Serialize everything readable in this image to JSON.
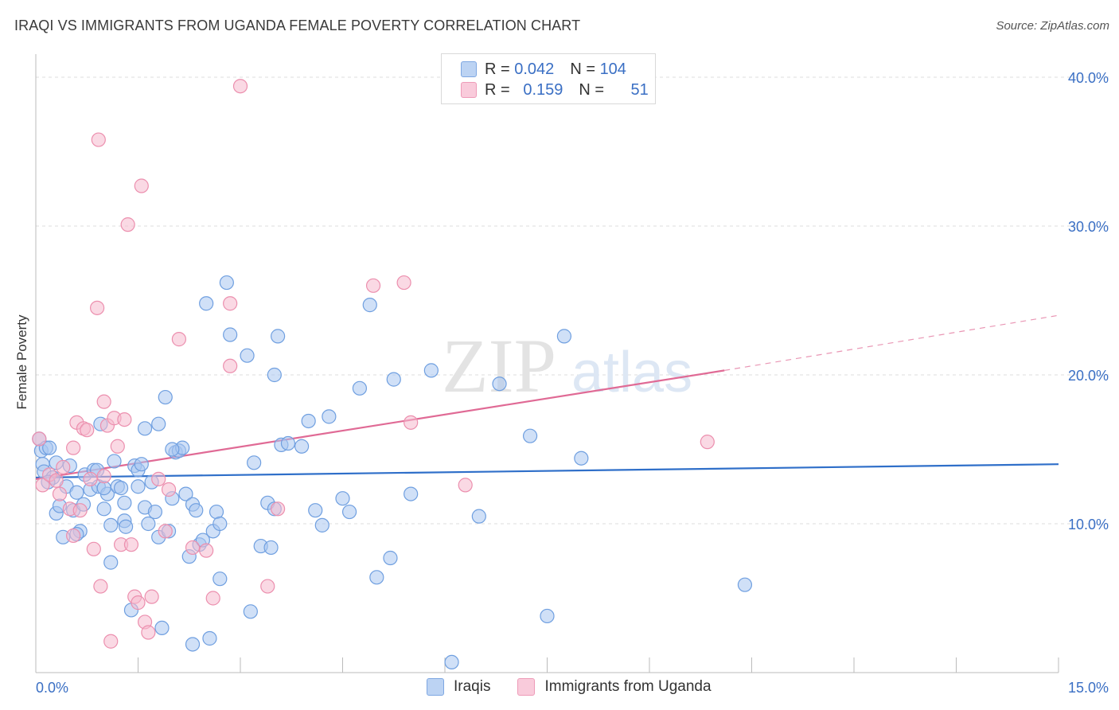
{
  "title": "IRAQI VS IMMIGRANTS FROM UGANDA FEMALE POVERTY CORRELATION CHART",
  "source": "Source: ZipAtlas.com",
  "watermark": {
    "zip": "ZIP",
    "atlas": "atlas"
  },
  "legend_top": {
    "rows": [
      {
        "r_label": "R =",
        "r_value": "0.042",
        "n_label": "N =",
        "n_value": "104"
      },
      {
        "r_label": "R =",
        "r_value": "0.159",
        "n_label": "N =",
        "n_value": "51"
      }
    ]
  },
  "bottom_legend": {
    "series_a": "Iraqis",
    "series_b": "Immigrants from Uganda"
  },
  "colors": {
    "blue_fill": "#a9c6f0",
    "blue_stroke": "#6f9fe0",
    "blue_line": "#2f6fc9",
    "pink_fill": "#f6b9cd",
    "pink_stroke": "#ec8fae",
    "pink_line": "#e06a95",
    "axis_text": "#3a6fc4",
    "grid": "#dddddd"
  },
  "chart_data": {
    "type": "scatter",
    "title": "IRAQI VS IMMIGRANTS FROM UGANDA FEMALE POVERTY CORRELATION CHART",
    "xlabel": "",
    "ylabel": "Female Poverty",
    "xlim": [
      0,
      15
    ],
    "ylim": [
      0,
      40
    ],
    "x_tick_labels": [
      "0.0%",
      "15.0%"
    ],
    "y_ticks": [
      10,
      20,
      30,
      40
    ],
    "y_tick_labels": [
      "10.0%",
      "20.0%",
      "30.0%",
      "40.0%"
    ],
    "series": [
      {
        "name": "Iraqis",
        "R": 0.042,
        "N": 104,
        "trend": {
          "x": [
            0,
            15
          ],
          "y": [
            13.1,
            14.0
          ],
          "dashed_extension": false
        },
        "points": [
          [
            0.05,
            15.7
          ],
          [
            0.08,
            14.9
          ],
          [
            0.1,
            14.0
          ],
          [
            0.12,
            13.5
          ],
          [
            0.15,
            15.1
          ],
          [
            0.2,
            15.1
          ],
          [
            0.25,
            13.1
          ],
          [
            0.3,
            14.1
          ],
          [
            0.3,
            10.7
          ],
          [
            0.35,
            11.2
          ],
          [
            0.4,
            9.1
          ],
          [
            0.45,
            12.5
          ],
          [
            0.5,
            13.9
          ],
          [
            0.55,
            10.9
          ],
          [
            0.6,
            12.1
          ],
          [
            0.65,
            9.5
          ],
          [
            0.7,
            11.3
          ],
          [
            0.72,
            13.3
          ],
          [
            0.8,
            12.3
          ],
          [
            0.85,
            13.6
          ],
          [
            0.9,
            13.6
          ],
          [
            0.92,
            12.5
          ],
          [
            0.95,
            16.7
          ],
          [
            1.0,
            11.0
          ],
          [
            1.05,
            12.0
          ],
          [
            1.1,
            9.9
          ],
          [
            1.1,
            7.4
          ],
          [
            1.15,
            14.2
          ],
          [
            1.2,
            12.5
          ],
          [
            1.25,
            12.4
          ],
          [
            1.3,
            10.2
          ],
          [
            1.32,
            9.8
          ],
          [
            1.4,
            4.2
          ],
          [
            1.45,
            13.9
          ],
          [
            1.5,
            12.5
          ],
          [
            1.5,
            13.6
          ],
          [
            1.55,
            14.0
          ],
          [
            1.6,
            11.1
          ],
          [
            1.6,
            16.4
          ],
          [
            1.65,
            10.0
          ],
          [
            1.7,
            12.8
          ],
          [
            1.75,
            10.8
          ],
          [
            1.8,
            9.1
          ],
          [
            1.8,
            16.7
          ],
          [
            1.85,
            3.0
          ],
          [
            1.9,
            18.5
          ],
          [
            1.95,
            9.5
          ],
          [
            2.0,
            11.7
          ],
          [
            2.05,
            14.8
          ],
          [
            2.1,
            14.9
          ],
          [
            2.15,
            15.1
          ],
          [
            2.2,
            12.0
          ],
          [
            2.25,
            7.8
          ],
          [
            2.3,
            11.3
          ],
          [
            2.3,
            1.9
          ],
          [
            2.35,
            10.9
          ],
          [
            2.4,
            8.6
          ],
          [
            2.45,
            8.9
          ],
          [
            2.5,
            24.8
          ],
          [
            2.55,
            2.3
          ],
          [
            2.6,
            9.5
          ],
          [
            2.65,
            10.8
          ],
          [
            2.7,
            6.3
          ],
          [
            2.8,
            26.2
          ],
          [
            2.85,
            22.7
          ],
          [
            3.1,
            21.3
          ],
          [
            3.15,
            4.1
          ],
          [
            3.2,
            14.1
          ],
          [
            3.3,
            8.5
          ],
          [
            3.4,
            11.4
          ],
          [
            3.45,
            8.4
          ],
          [
            3.5,
            20.0
          ],
          [
            3.55,
            22.6
          ],
          [
            3.6,
            15.3
          ],
          [
            3.7,
            15.4
          ],
          [
            3.9,
            15.2
          ],
          [
            4.0,
            16.9
          ],
          [
            4.1,
            10.9
          ],
          [
            4.3,
            17.2
          ],
          [
            4.5,
            11.7
          ],
          [
            4.6,
            10.8
          ],
          [
            4.75,
            19.1
          ],
          [
            4.9,
            24.7
          ],
          [
            5.0,
            6.4
          ],
          [
            5.2,
            7.7
          ],
          [
            5.25,
            19.7
          ],
          [
            5.8,
            20.3
          ],
          [
            6.1,
            0.7
          ],
          [
            6.5,
            10.5
          ],
          [
            6.8,
            19.4
          ],
          [
            7.25,
            15.9
          ],
          [
            7.5,
            3.8
          ],
          [
            7.75,
            22.6
          ],
          [
            8.0,
            14.4
          ],
          [
            10.4,
            5.9
          ],
          [
            0.6,
            9.3
          ],
          [
            2.0,
            15.0
          ],
          [
            1.0,
            12.4
          ],
          [
            3.5,
            11.0
          ],
          [
            0.18,
            12.8
          ],
          [
            2.7,
            10.0
          ],
          [
            4.2,
            9.9
          ],
          [
            5.5,
            12.0
          ],
          [
            1.3,
            11.4
          ]
        ]
      },
      {
        "name": "Immigrants from Uganda",
        "R": 0.159,
        "N": 51,
        "trend": {
          "x": [
            0,
            10.1
          ],
          "y": [
            13.0,
            20.3
          ],
          "dashed_extension": true,
          "dashed_to": {
            "x": 15,
            "y": 24.0
          }
        },
        "points": [
          [
            0.05,
            15.7
          ],
          [
            0.1,
            12.6
          ],
          [
            0.2,
            13.3
          ],
          [
            0.3,
            12.9
          ],
          [
            0.35,
            12.0
          ],
          [
            0.4,
            13.8
          ],
          [
            0.5,
            11.0
          ],
          [
            0.55,
            9.2
          ],
          [
            0.55,
            15.1
          ],
          [
            0.6,
            16.8
          ],
          [
            0.65,
            10.9
          ],
          [
            0.7,
            16.4
          ],
          [
            0.75,
            16.3
          ],
          [
            0.8,
            13.0
          ],
          [
            0.85,
            8.3
          ],
          [
            0.9,
            24.5
          ],
          [
            0.92,
            35.8
          ],
          [
            0.95,
            5.8
          ],
          [
            1.0,
            18.2
          ],
          [
            1.05,
            16.6
          ],
          [
            1.1,
            2.1
          ],
          [
            1.15,
            17.1
          ],
          [
            1.2,
            15.2
          ],
          [
            1.25,
            8.6
          ],
          [
            1.3,
            17.0
          ],
          [
            1.35,
            30.1
          ],
          [
            1.4,
            8.6
          ],
          [
            1.45,
            5.1
          ],
          [
            1.5,
            4.7
          ],
          [
            1.55,
            32.7
          ],
          [
            1.6,
            3.4
          ],
          [
            1.65,
            2.7
          ],
          [
            1.7,
            5.1
          ],
          [
            1.8,
            13.0
          ],
          [
            1.9,
            9.5
          ],
          [
            1.95,
            12.3
          ],
          [
            2.1,
            22.4
          ],
          [
            2.3,
            8.4
          ],
          [
            2.5,
            8.2
          ],
          [
            2.6,
            5.0
          ],
          [
            2.85,
            24.8
          ],
          [
            2.85,
            20.6
          ],
          [
            3.0,
            39.4
          ],
          [
            3.4,
            5.8
          ],
          [
            3.55,
            11.0
          ],
          [
            4.95,
            26.0
          ],
          [
            5.4,
            26.2
          ],
          [
            5.5,
            16.8
          ],
          [
            6.3,
            12.6
          ],
          [
            9.85,
            15.5
          ],
          [
            1.0,
            13.2
          ]
        ]
      }
    ]
  }
}
